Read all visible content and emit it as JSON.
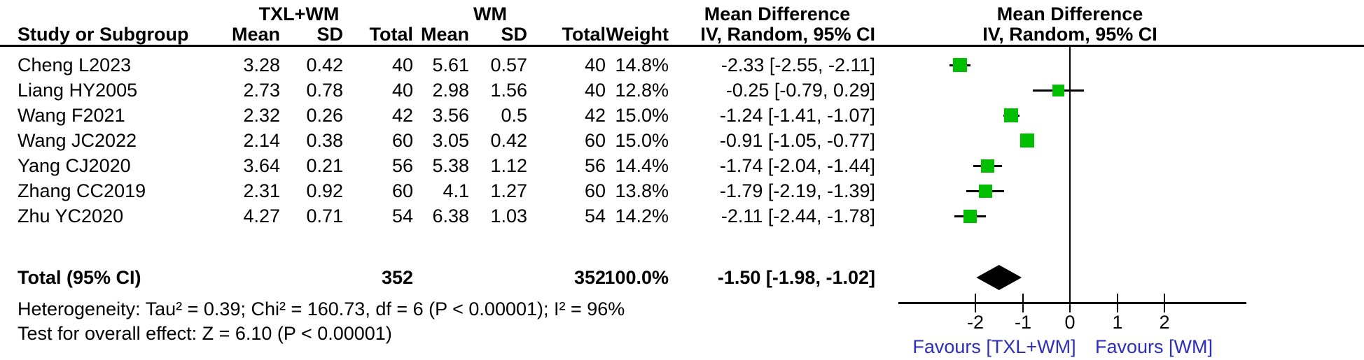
{
  "header": {
    "group1_label": "TXL+WM",
    "group2_label": "WM",
    "effect_label_left": "Mean Difference",
    "effect_label_right": "Mean Difference",
    "study_col": "Study or Subgroup",
    "mean_col": "Mean",
    "sd_col": "SD",
    "total_col": "Total",
    "weight_col": "Weight",
    "method_col": "IV, Random, 95% CI",
    "method_col_right": "IV, Random, 95% CI"
  },
  "studies": [
    {
      "name": "Cheng L2023",
      "mean1": "3.28",
      "sd1": "0.42",
      "total1": "40",
      "mean2": "5.61",
      "sd2": "0.57",
      "total2": "40",
      "weight": "14.8%",
      "weight_value": 14.8,
      "ci_label": "-2.33 [-2.55, -2.11]",
      "md": -2.33,
      "lo": -2.55,
      "hi": -2.11
    },
    {
      "name": "Liang HY2005",
      "mean1": "2.73",
      "sd1": "0.78",
      "total1": "40",
      "mean2": "2.98",
      "sd2": "1.56",
      "total2": "40",
      "weight": "12.8%",
      "weight_value": 12.8,
      "ci_label": "-0.25 [-0.79, 0.29]",
      "md": -0.25,
      "lo": -0.79,
      "hi": 0.29
    },
    {
      "name": "Wang F2021",
      "mean1": "2.32",
      "sd1": "0.26",
      "total1": "42",
      "mean2": "3.56",
      "sd2": "0.5",
      "total2": "42",
      "weight": "15.0%",
      "weight_value": 15.0,
      "ci_label": "-1.24 [-1.41, -1.07]",
      "md": -1.24,
      "lo": -1.41,
      "hi": -1.07
    },
    {
      "name": "Wang JC2022",
      "mean1": "2.14",
      "sd1": "0.38",
      "total1": "60",
      "mean2": "3.05",
      "sd2": "0.42",
      "total2": "60",
      "weight": "15.0%",
      "weight_value": 15.0,
      "ci_label": "-0.91 [-1.05, -0.77]",
      "md": -0.91,
      "lo": -1.05,
      "hi": -0.77
    },
    {
      "name": "Yang CJ2020",
      "mean1": "3.64",
      "sd1": "0.21",
      "total1": "56",
      "mean2": "5.38",
      "sd2": "1.12",
      "total2": "56",
      "weight": "14.4%",
      "weight_value": 14.4,
      "ci_label": "-1.74 [-2.04, -1.44]",
      "md": -1.74,
      "lo": -2.04,
      "hi": -1.44
    },
    {
      "name": "Zhang CC2019",
      "mean1": "2.31",
      "sd1": "0.92",
      "total1": "60",
      "mean2": "4.1",
      "sd2": "1.27",
      "total2": "60",
      "weight": "13.8%",
      "weight_value": 13.8,
      "ci_label": "-1.79 [-2.19, -1.39]",
      "md": -1.79,
      "lo": -2.19,
      "hi": -1.39
    },
    {
      "name": "Zhu YC2020",
      "mean1": "4.27",
      "sd1": "0.71",
      "total1": "54",
      "mean2": "6.38",
      "sd2": "1.03",
      "total2": "54",
      "weight": "14.2%",
      "weight_value": 14.2,
      "ci_label": "-2.11 [-2.44, -1.78]",
      "md": -2.11,
      "lo": -2.44,
      "hi": -1.78
    }
  ],
  "total": {
    "label": "Total (95% CI)",
    "total1": "352",
    "total2": "352",
    "weight": "100.0%",
    "ci_label": "-1.50 [-1.98, -1.02]",
    "md": -1.5,
    "lo": -1.98,
    "hi": -1.02
  },
  "footer": {
    "heterogeneity": "Heterogeneity: Tau² = 0.39; Chi² = 160.73, df = 6 (P < 0.00001); I² = 96%",
    "overall_effect": "Test for overall effect: Z = 6.10 (P < 0.00001)"
  },
  "axis": {
    "ticks": [
      "-2",
      "-1",
      "0",
      "1",
      "2"
    ],
    "tick_values": [
      -2,
      -1,
      0,
      1,
      2
    ],
    "favours_left": "Favours [TXL+WM]",
    "favours_right": "Favours [WM]"
  },
  "colors": {
    "marker_green": "#00bf00",
    "diamond_black": "#000000",
    "favours_text": "#2e2eb8",
    "line_black": "#000000"
  },
  "chart_data": {
    "type": "forest",
    "title": "Mean Difference, IV, Random, 95% CI (TXL+WM vs WM)",
    "categories": [
      "Cheng L2023",
      "Liang HY2005",
      "Wang F2021",
      "Wang JC2022",
      "Yang CJ2020",
      "Zhang CC2019",
      "Zhu YC2020"
    ],
    "group1": {
      "name": "TXL+WM",
      "means": [
        3.28,
        2.73,
        2.32,
        2.14,
        3.64,
        2.31,
        4.27
      ],
      "sds": [
        0.42,
        0.78,
        0.26,
        0.38,
        0.21,
        0.92,
        0.71
      ],
      "totals": [
        40,
        40,
        42,
        60,
        56,
        60,
        54
      ]
    },
    "group2": {
      "name": "WM",
      "means": [
        5.61,
        2.98,
        3.56,
        3.05,
        5.38,
        4.1,
        6.38
      ],
      "sds": [
        0.57,
        1.56,
        0.5,
        0.42,
        1.12,
        1.27,
        1.03
      ],
      "totals": [
        40,
        40,
        42,
        60,
        56,
        60,
        54
      ]
    },
    "weights_pct": [
      14.8,
      12.8,
      15.0,
      15.0,
      14.4,
      13.8,
      14.2
    ],
    "mean_differences": [
      -2.33,
      -0.25,
      -1.24,
      -0.91,
      -1.74,
      -1.79,
      -2.11
    ],
    "ci_low": [
      -2.55,
      -0.79,
      -1.41,
      -1.05,
      -2.04,
      -2.19,
      -2.44
    ],
    "ci_high": [
      -2.11,
      0.29,
      -1.07,
      -0.77,
      -1.44,
      -1.39,
      -1.78
    ],
    "pooled": {
      "md": -1.5,
      "ci_low": -1.98,
      "ci_high": -1.02,
      "total1": 352,
      "total2": 352,
      "weight_pct": 100.0
    },
    "heterogeneity": {
      "tau2": 0.39,
      "chi2": 160.73,
      "df": 6,
      "p": "< 0.00001",
      "i2_pct": 96
    },
    "overall_effect": {
      "z": 6.1,
      "p": "< 0.00001"
    },
    "xlim": [
      -2.5,
      2.5
    ],
    "x_ticks": [
      -2,
      -1,
      0,
      1,
      2
    ],
    "grid": false,
    "xlabel_left": "Favours [TXL+WM]",
    "xlabel_right": "Favours [WM]"
  }
}
